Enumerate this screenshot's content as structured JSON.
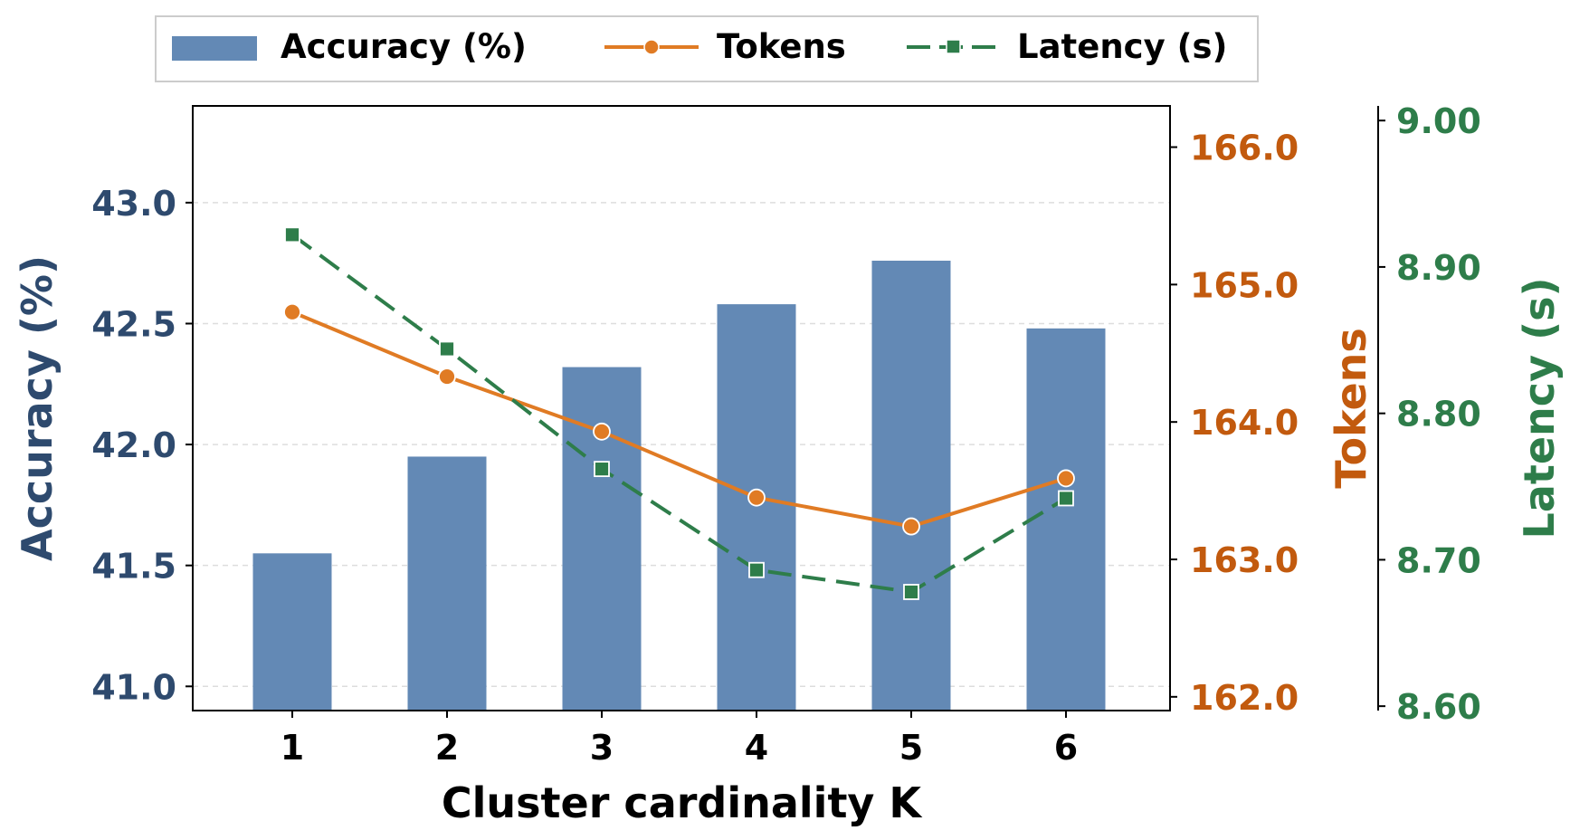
{
  "chart_data": {
    "type": "bar",
    "xlabel": "Cluster cardinality K",
    "categories": [
      "1",
      "2",
      "3",
      "4",
      "5",
      "6"
    ],
    "x": [
      1,
      2,
      3,
      4,
      5,
      6
    ],
    "grid": "horizontal dashed",
    "legend_position": "top-center",
    "axes": {
      "accuracy": {
        "label": "Accuracy (%)",
        "range": [
          40.9,
          43.4
        ],
        "ticks": [
          41.0,
          41.5,
          42.0,
          42.5,
          43.0
        ],
        "tick_labels": [
          "41.0",
          "41.5",
          "42.0",
          "42.5",
          "43.0"
        ],
        "color": "#2E4A6E"
      },
      "tokens": {
        "label": "Tokens",
        "range": [
          161.9,
          166.3
        ],
        "ticks": [
          162.0,
          163.0,
          164.0,
          165.0,
          166.0
        ],
        "tick_labels": [
          "162.0",
          "163.0",
          "164.0",
          "165.0",
          "166.0"
        ],
        "color": "#C25A0E"
      },
      "latency": {
        "label": "Latency (s)",
        "range": [
          8.597,
          9.01
        ],
        "ticks": [
          8.6,
          8.7,
          8.8,
          8.9,
          9.0
        ],
        "tick_labels": [
          "8.60",
          "8.70",
          "8.80",
          "8.90",
          "9.00"
        ],
        "color": "#2E7D4A"
      }
    },
    "series": [
      {
        "name": "Accuracy (%)",
        "kind": "bar",
        "axis": "accuracy",
        "color": "#6389B5",
        "values": [
          41.55,
          41.95,
          42.32,
          42.58,
          42.76,
          42.48
        ]
      },
      {
        "name": "Tokens",
        "kind": "line",
        "axis": "tokens",
        "color": "#E07B24",
        "marker": "circle",
        "line_style": "solid",
        "values": [
          164.8,
          164.33,
          163.93,
          163.45,
          163.24,
          163.59
        ]
      },
      {
        "name": "Latency (s)",
        "kind": "line",
        "axis": "latency",
        "color": "#2E7D4A",
        "marker": "square",
        "line_style": "dashed",
        "values": [
          8.922,
          8.844,
          8.762,
          8.693,
          8.678,
          8.742
        ]
      }
    ]
  }
}
